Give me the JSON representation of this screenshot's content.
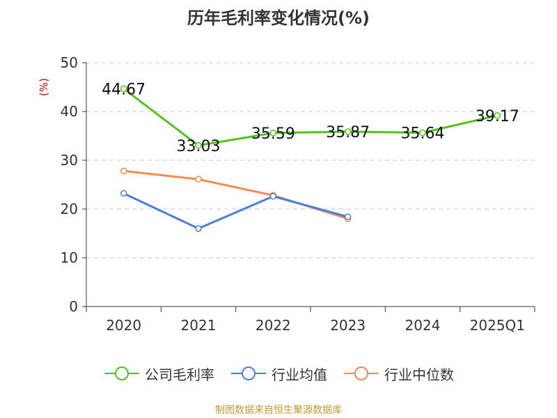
{
  "title": "历年毛利率变化情况(%)",
  "source": "制图数据来自恒生聚源数据库",
  "chart_data": {
    "type": "line",
    "categories": [
      "2020",
      "2021",
      "2022",
      "2023",
      "2024",
      "2025Q1"
    ],
    "ylabel": "(%)",
    "ylim": [
      0,
      50
    ],
    "yticks": [
      0,
      10,
      20,
      30,
      40,
      50
    ],
    "grid": true,
    "legend_position": "bottom",
    "series": [
      {
        "name": "公司毛利率",
        "color": "#52c41a",
        "values": [
          44.67,
          33.03,
          35.59,
          35.87,
          35.64,
          39.17
        ],
        "show_labels": true
      },
      {
        "name": "行业均值",
        "color": "#4a7fd9",
        "values": [
          23.2,
          16.0,
          22.6,
          18.4,
          null,
          null
        ],
        "show_labels": false
      },
      {
        "name": "行业中位数",
        "color": "#f5894f",
        "values": [
          27.8,
          26.1,
          22.8,
          18.0,
          null,
          null
        ],
        "show_labels": false
      }
    ]
  }
}
